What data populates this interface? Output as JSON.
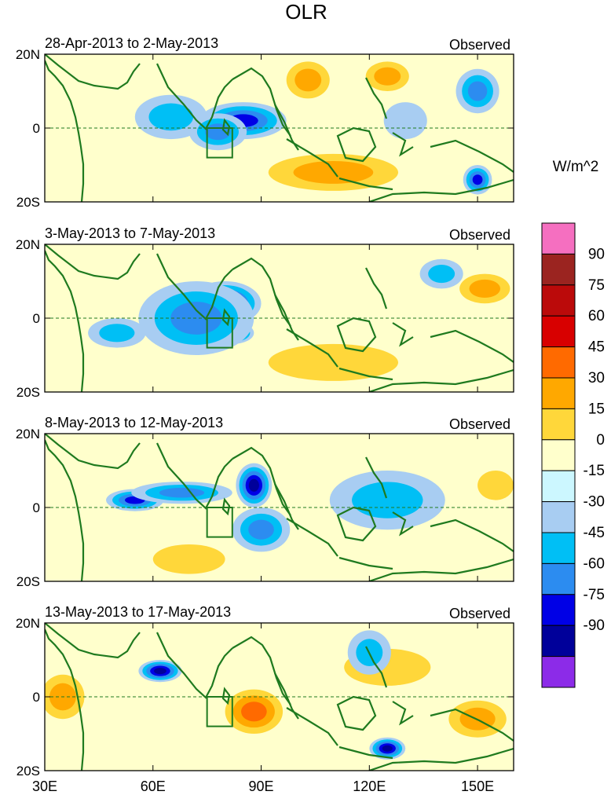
{
  "chart_data": {
    "type": "heatmap",
    "title": "OLR",
    "colorbar_label": "W/m^2",
    "levels": [
      90,
      75,
      60,
      45,
      30,
      15,
      0,
      -15,
      -30,
      -45,
      -60,
      -75,
      -90
    ],
    "colorbar_colors": [
      "#f56fc0",
      "#9b2420",
      "#bb0a0a",
      "#d80000",
      "#ff6a00",
      "#ffa800",
      "#ffd73a",
      "#ffffcc",
      "#ccf7ff",
      "#a8cdf2",
      "#00bff5",
      "#2c8cf0",
      "#0000e6",
      "#00009a",
      "#8c2be8"
    ],
    "panel_label": "Observed",
    "panels": [
      {
        "date_range": "28-Apr-2013 to 2-May-2013",
        "anomalies": [
          {
            "lon": 85,
            "lat": 2,
            "value": -60,
            "rx": 12,
            "ry": 5
          },
          {
            "lon": 65,
            "lat": 3,
            "value": -30,
            "rx": 10,
            "ry": 6
          },
          {
            "lon": 78,
            "lat": -1,
            "value": -45,
            "rx": 8,
            "ry": 5
          },
          {
            "lon": 110,
            "lat": -12,
            "value": 30,
            "rx": 18,
            "ry": 5
          },
          {
            "lon": 125,
            "lat": 14,
            "value": 30,
            "rx": 6,
            "ry": 4
          },
          {
            "lon": 103,
            "lat": 13,
            "value": 30,
            "rx": 6,
            "ry": 5
          },
          {
            "lon": 150,
            "lat": 10,
            "value": -45,
            "rx": 6,
            "ry": 6
          },
          {
            "lon": 150,
            "lat": -14,
            "value": -60,
            "rx": 4,
            "ry": 4
          },
          {
            "lon": 130,
            "lat": 2,
            "value": -15,
            "rx": 6,
            "ry": 5
          }
        ]
      },
      {
        "date_range": "3-May-2013 to 7-May-2013",
        "anomalies": [
          {
            "lon": 80,
            "lat": 4,
            "value": -75,
            "rx": 10,
            "ry": 6
          },
          {
            "lon": 82,
            "lat": -4,
            "value": -75,
            "rx": 6,
            "ry": 3
          },
          {
            "lon": 72,
            "lat": 0,
            "value": -45,
            "rx": 16,
            "ry": 10
          },
          {
            "lon": 50,
            "lat": -4,
            "value": -30,
            "rx": 8,
            "ry": 4
          },
          {
            "lon": 152,
            "lat": 8,
            "value": 30,
            "rx": 7,
            "ry": 4
          },
          {
            "lon": 140,
            "lat": 12,
            "value": -30,
            "rx": 6,
            "ry": 4
          },
          {
            "lon": 110,
            "lat": -12,
            "value": 15,
            "rx": 18,
            "ry": 5
          }
        ]
      },
      {
        "date_range": "8-May-2013 to 12-May-2013",
        "anomalies": [
          {
            "lon": 88,
            "lat": 6,
            "value": -75,
            "rx": 5,
            "ry": 6
          },
          {
            "lon": 55,
            "lat": 2,
            "value": -60,
            "rx": 8,
            "ry": 3
          },
          {
            "lon": 68,
            "lat": 4,
            "value": -45,
            "rx": 14,
            "ry": 3
          },
          {
            "lon": 90,
            "lat": -6,
            "value": -45,
            "rx": 8,
            "ry": 6
          },
          {
            "lon": 125,
            "lat": 2,
            "value": -30,
            "rx": 16,
            "ry": 8
          },
          {
            "lon": 70,
            "lat": -14,
            "value": 15,
            "rx": 10,
            "ry": 4
          },
          {
            "lon": 155,
            "lat": 6,
            "value": 15,
            "rx": 5,
            "ry": 4
          }
        ]
      },
      {
        "date_range": "13-May-2013 to 17-May-2013",
        "anomalies": [
          {
            "lon": 62,
            "lat": 7,
            "value": -75,
            "rx": 6,
            "ry": 3
          },
          {
            "lon": 88,
            "lat": -4,
            "value": 45,
            "rx": 8,
            "ry": 6
          },
          {
            "lon": 35,
            "lat": 0,
            "value": 30,
            "rx": 6,
            "ry": 6
          },
          {
            "lon": 125,
            "lat": 8,
            "value": 15,
            "rx": 12,
            "ry": 5
          },
          {
            "lon": 120,
            "lat": 12,
            "value": -30,
            "rx": 6,
            "ry": 6
          },
          {
            "lon": 125,
            "lat": -14,
            "value": -75,
            "rx": 5,
            "ry": 3
          },
          {
            "lon": 150,
            "lat": -6,
            "value": 30,
            "rx": 8,
            "ry": 5
          }
        ]
      }
    ],
    "x_ticks": [
      {
        "value": 30,
        "label": "30E"
      },
      {
        "value": 60,
        "label": "60E"
      },
      {
        "value": 90,
        "label": "90E"
      },
      {
        "value": 120,
        "label": "120E"
      },
      {
        "value": 150,
        "label": "150E"
      }
    ],
    "y_ticks": [
      {
        "value": 20,
        "label": "20N"
      },
      {
        "value": 0,
        "label": "0"
      },
      {
        "value": -20,
        "label": "20S"
      }
    ],
    "lon_range": [
      30,
      160
    ],
    "lat_range": [
      -20,
      20
    ],
    "box_region": {
      "lon": [
        75,
        82
      ],
      "lat": [
        -8,
        0
      ]
    }
  }
}
